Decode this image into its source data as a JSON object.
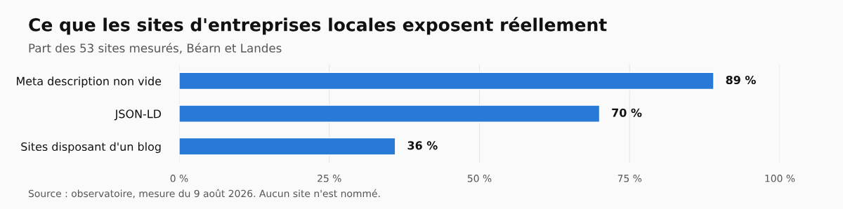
{
  "chart_data": {
    "type": "bar",
    "orientation": "horizontal",
    "title": "Ce que les sites d'entreprises locales exposent réellement",
    "subtitle": "Part des 53 sites mesurés, Béarn et Landes",
    "categories": [
      "Meta description non vide",
      "JSON-LD",
      "Sites disposant d'un blog"
    ],
    "values": [
      89,
      70,
      36
    ],
    "value_labels": [
      "89 %",
      "70 %",
      "36 %"
    ],
    "color": "#2979d6",
    "xlim": [
      0,
      100
    ],
    "xticks": [
      {
        "value": 0,
        "label": "0 %"
      },
      {
        "value": 25,
        "label": "25 %"
      },
      {
        "value": 50,
        "label": "50 %"
      },
      {
        "value": 75,
        "label": "75 %"
      },
      {
        "value": 100,
        "label": "100 %"
      }
    ],
    "grid": "x",
    "annotations": [
      "Source : observatoire, mesure du 9 août 2026. Aucun site n'est nommé."
    ]
  }
}
